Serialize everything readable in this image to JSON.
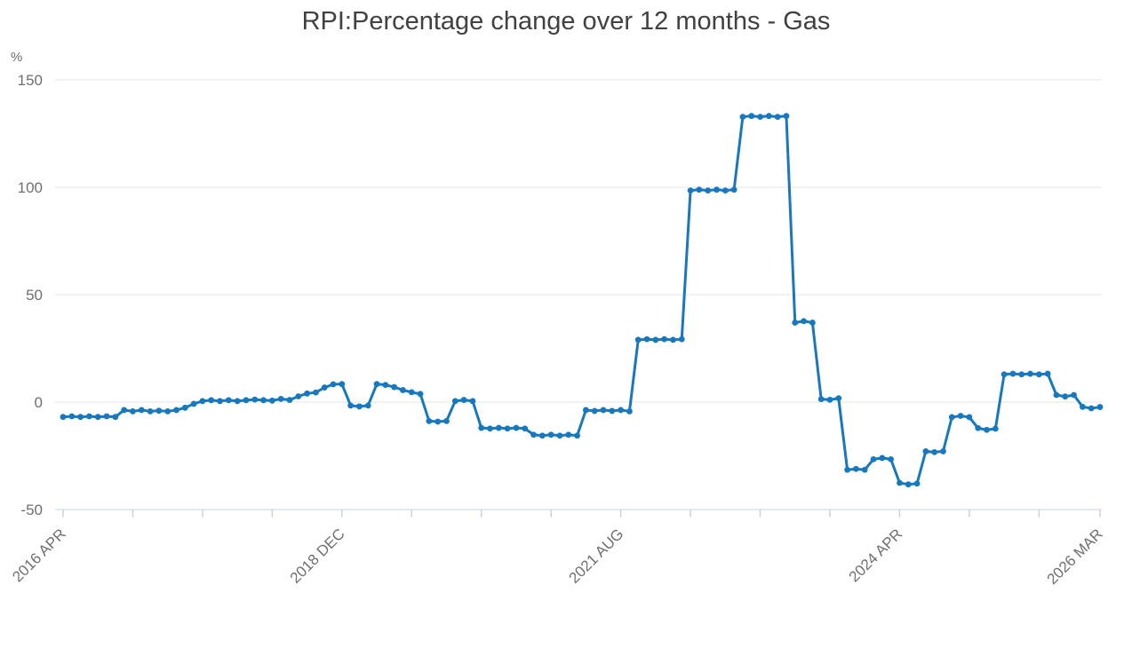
{
  "title": "RPI:Percentage change over 12 months - Gas",
  "y_axis": {
    "unit_label": "%",
    "ticks": [
      150,
      100,
      50,
      0,
      -50
    ],
    "min": -50,
    "max": 150
  },
  "x_axis": {
    "tick_labels": [
      {
        "month_index": 0,
        "label": "2016 APR"
      },
      {
        "month_index": 32,
        "label": "2018 DEC"
      },
      {
        "month_index": 64,
        "label": "2021 AUG"
      },
      {
        "month_index": 96,
        "label": "2024 APR"
      },
      {
        "month_index": 119,
        "label": "2026 MAR"
      }
    ],
    "tick_every_months": 8,
    "total_months": 120
  },
  "colors": {
    "line": "#1778be",
    "grid": "#e6e6e6",
    "axis": "#c9d2e0",
    "label_text": "#6f6f6f",
    "title_text": "#414042"
  },
  "chart_data": {
    "type": "line",
    "title": "RPI:Percentage change over 12 months - Gas",
    "series_name": "RPI percentage change over 12 months - Gas",
    "x_start": "2016 APR",
    "x_end": "2026 MAR",
    "x_freq": "monthly",
    "xlabel": "",
    "ylabel": "%",
    "ylim": [
      -50,
      150
    ],
    "grid": true,
    "markers": true,
    "legend": false,
    "values": [
      -6.9,
      -6.6,
      -6.9,
      -6.6,
      -6.9,
      -6.6,
      -6.9,
      -3.7,
      -4.3,
      -3.7,
      -4.3,
      -4.0,
      -4.3,
      -3.7,
      -2.6,
      -0.8,
      0.5,
      0.9,
      0.5,
      0.9,
      0.5,
      0.9,
      1.2,
      0.9,
      0.7,
      1.5,
      1.0,
      2.7,
      4.0,
      4.5,
      6.8,
      8.3,
      8.4,
      -1.6,
      -2.0,
      -1.6,
      8.4,
      8.0,
      7.0,
      5.6,
      4.6,
      3.8,
      -8.8,
      -9.1,
      -8.8,
      0.5,
      1.0,
      0.5,
      -12.0,
      -12.3,
      -12.0,
      -12.3,
      -12.0,
      -12.3,
      -15.2,
      -15.6,
      -15.2,
      -15.6,
      -15.2,
      -15.6,
      -3.7,
      -4.1,
      -3.7,
      -4.1,
      -3.7,
      -4.3,
      29.0,
      29.3,
      29.0,
      29.3,
      29.0,
      29.3,
      98.5,
      98.9,
      98.5,
      98.9,
      98.5,
      98.9,
      132.8,
      133.2,
      132.8,
      133.2,
      132.8,
      133.2,
      37.0,
      37.7,
      37.0,
      1.4,
      1.1,
      1.8,
      -31.5,
      -31.1,
      -31.5,
      -26.6,
      -26.0,
      -26.6,
      -37.6,
      -38.3,
      -37.9,
      -22.9,
      -23.3,
      -22.9,
      -7.0,
      -6.4,
      -7.0,
      -12.1,
      -12.9,
      -12.4,
      12.9,
      13.2,
      12.9,
      13.2,
      12.9,
      13.2,
      3.3,
      2.6,
      3.3,
      -2.2,
      -2.9,
      -2.3
    ]
  }
}
